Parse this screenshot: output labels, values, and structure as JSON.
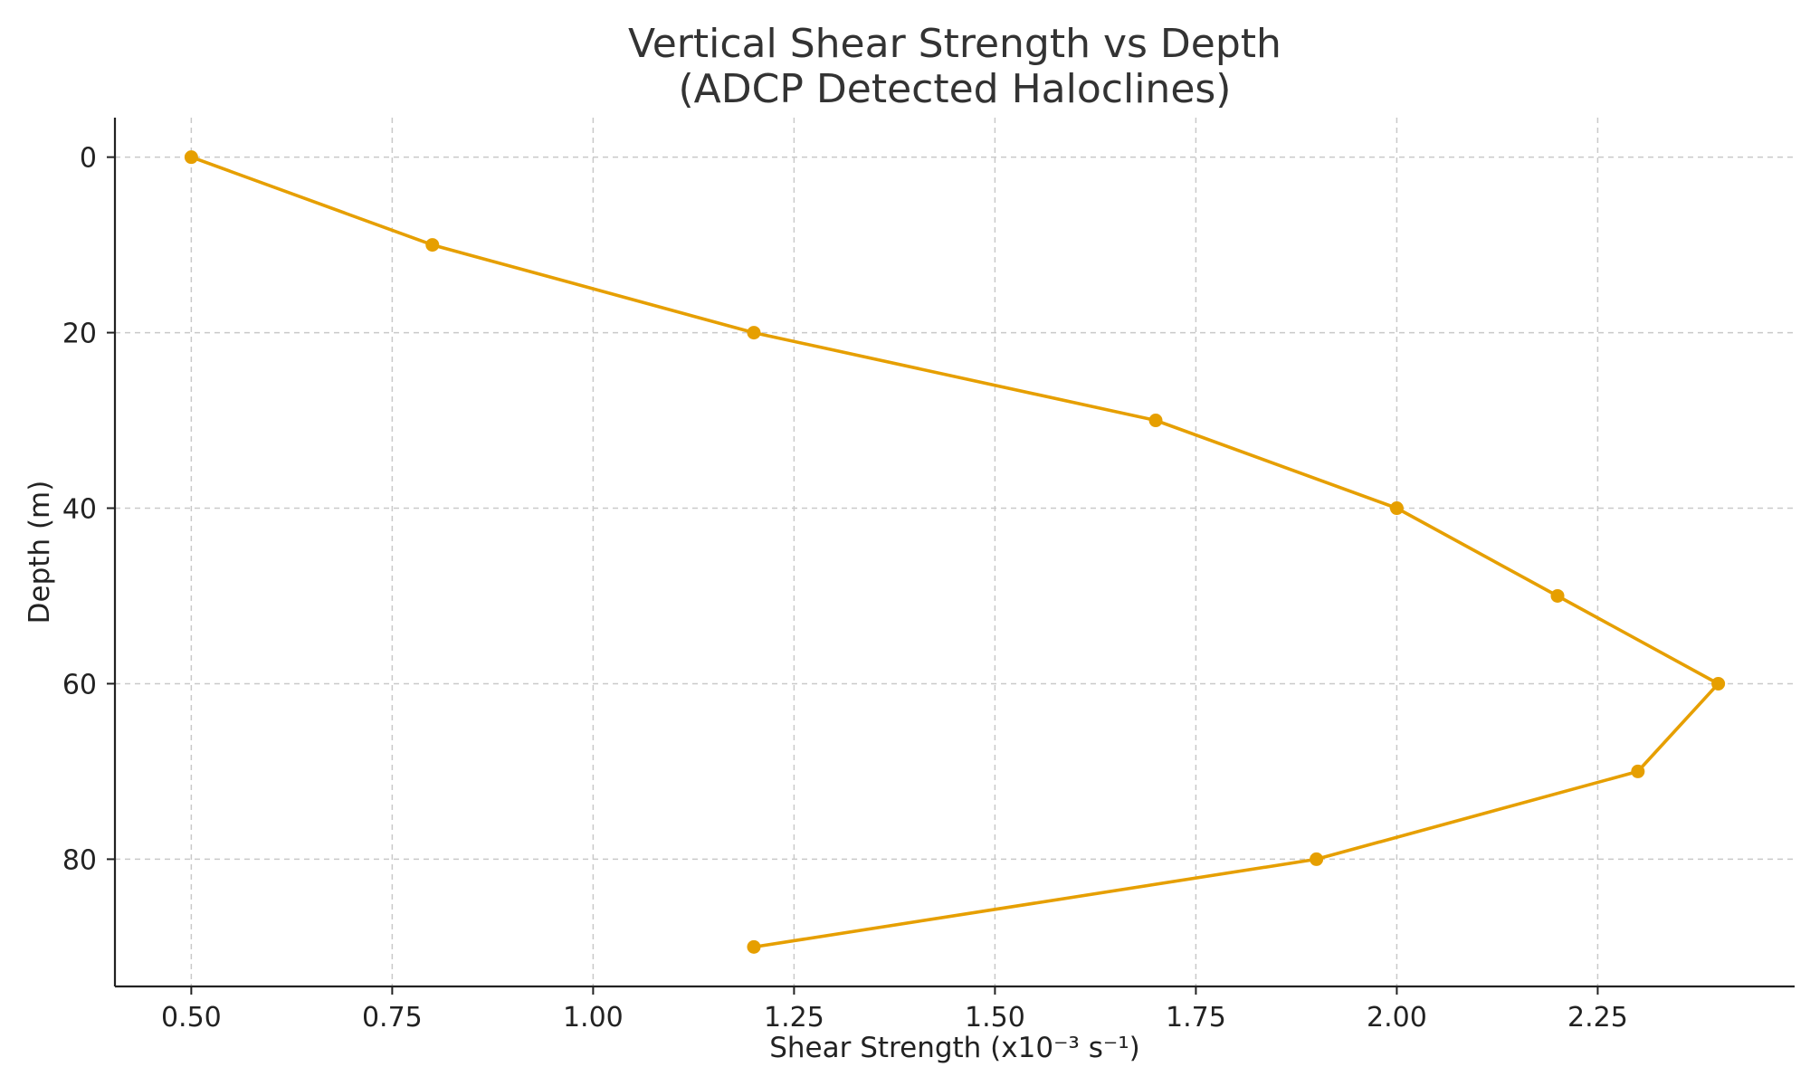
{
  "chart_data": {
    "type": "line",
    "title": "Vertical Shear Strength vs Depth",
    "subtitle": "(ADCP Detected Haloclines)",
    "xlabel": "Shear Strength (x10⁻³ s⁻¹)",
    "ylabel": "Depth (m)",
    "xlim": [
      0.405,
      2.495
    ],
    "ylim": [
      94.5,
      -4.5
    ],
    "y_inverted": true,
    "grid": true,
    "x_ticks": [
      0.5,
      0.75,
      1.0,
      1.25,
      1.5,
      1.75,
      2.0,
      2.25
    ],
    "x_tick_labels": [
      "0.50",
      "0.75",
      "1.00",
      "1.25",
      "1.50",
      "1.75",
      "2.00",
      "2.25"
    ],
    "y_ticks": [
      0,
      20,
      40,
      60,
      80
    ],
    "y_tick_labels": [
      "0",
      "20",
      "40",
      "60",
      "80"
    ],
    "series": [
      {
        "name": "Shear Strength",
        "color": "#E69F00",
        "marker": "circle",
        "x": [
          0.5,
          0.8,
          1.2,
          1.7,
          2.0,
          2.2,
          2.4,
          2.3,
          1.9,
          1.2
        ],
        "y": [
          0,
          10,
          20,
          30,
          40,
          50,
          60,
          70,
          80,
          90
        ]
      }
    ]
  }
}
